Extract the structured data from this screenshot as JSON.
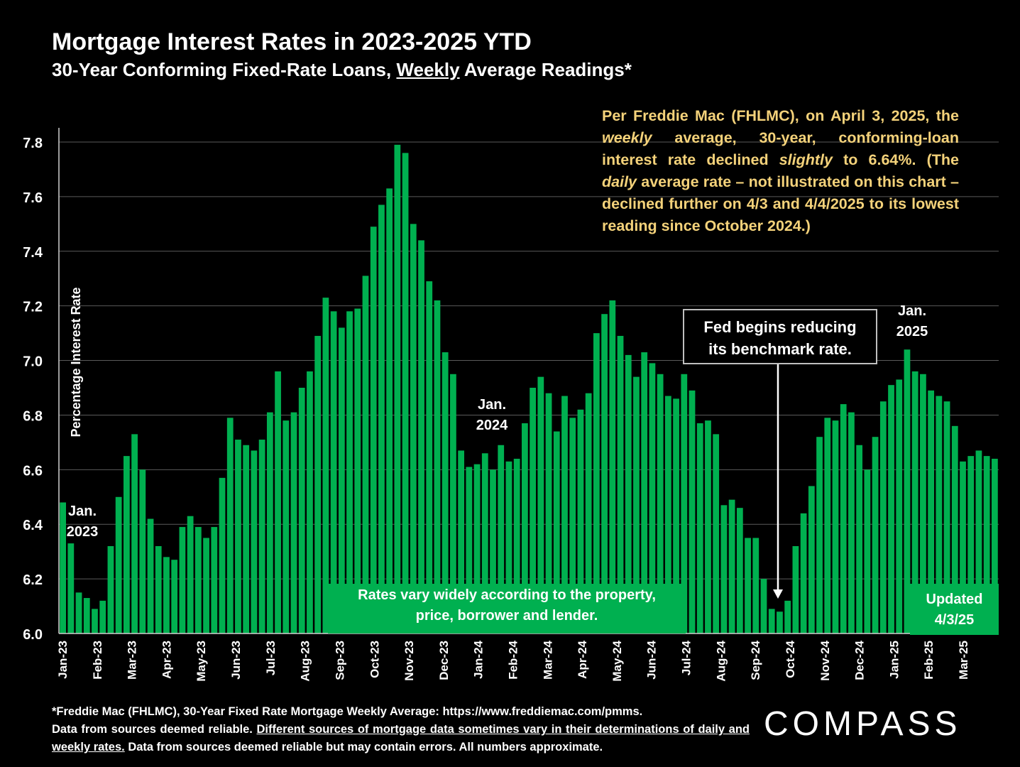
{
  "header": {
    "title": "Mortgage Interest Rates in 2023-2025 YTD",
    "subtitle_pre": "30-Year Conforming Fixed-Rate Loans, ",
    "subtitle_underlined": "Weekly",
    "subtitle_post": " Average Readings*"
  },
  "notice": {
    "p1": "Per Freddie Mac (FHLMC), on April 3, 2025, the ",
    "i1": "weekly",
    "p2": " average, 30-year, conforming-loan interest rate declined ",
    "i2": "slightly",
    "p3": " to 6.64%. (The ",
    "i3": "daily",
    "p4": " average rate – not illustrated on this chart – declined further on 4/3 and 4/4/2025 to its lowest reading since October 2024.)"
  },
  "annotations": {
    "fed_line1": "Fed begins reducing",
    "fed_line2": "its benchmark rate.",
    "rates_line1": "Rates vary widely according to the property,",
    "rates_line2": "price, borrower and lender.",
    "updated_line1": "Updated",
    "updated_line2": "4/3/25",
    "jan2023_a": "Jan.",
    "jan2023_b": "2023",
    "jan2024_a": "Jan.",
    "jan2024_b": "2024",
    "jan2025_a": "Jan.",
    "jan2025_b": "2025"
  },
  "footnote": {
    "line1": "*Freddie Mac (FHLMC), 30-Year Fixed Rate Mortgage Weekly Average: https://www.freddiemac.com/pmms.",
    "part2a": "Data from sources deemed reliable. ",
    "part2u": "Different sources of mortgage data sometimes vary in their determinations of daily and weekly rates.",
    "part2b": " Data from sources deemed reliable but may contain errors. All numbers approximate."
  },
  "logo": "COMPASS",
  "colors": {
    "bar": "#00b050",
    "notice_text": "#f4d27a",
    "background": "#000000"
  },
  "chart_data": {
    "type": "bar",
    "title": "Mortgage Interest Rates in 2023-2025 YTD",
    "ylabel": "Percentage Interest Rate",
    "ylim": [
      6.0,
      7.8
    ],
    "yticks": [
      "6.0",
      "6.2",
      "6.4",
      "6.6",
      "6.8",
      "7.0",
      "7.2",
      "7.4",
      "7.6",
      "7.8"
    ],
    "grid": true,
    "month_labels": [
      "Jan-23",
      "Feb-23",
      "Mar-23",
      "Apr-23",
      "May-23",
      "Jun-23",
      "Jul-23",
      "Aug-23",
      "Sep-23",
      "Oct-23",
      "Nov-23",
      "Dec-23",
      "Jan-24",
      "Feb-24",
      "Mar-24",
      "Apr-24",
      "May-24",
      "Jun-24",
      "Jul-24",
      "Aug-24",
      "Sep-24",
      "Oct-24",
      "Nov-24",
      "Dec-24",
      "Jan-25",
      "Feb-25",
      "Mar-25"
    ],
    "values": [
      6.48,
      6.33,
      6.15,
      6.13,
      6.09,
      6.12,
      6.32,
      6.5,
      6.65,
      6.73,
      6.6,
      6.42,
      6.32,
      6.28,
      6.27,
      6.39,
      6.43,
      6.39,
      6.35,
      6.39,
      6.57,
      6.79,
      6.71,
      6.69,
      6.67,
      6.71,
      6.81,
      6.96,
      6.78,
      6.81,
      6.9,
      6.96,
      7.09,
      7.23,
      7.18,
      7.12,
      7.18,
      7.19,
      7.31,
      7.49,
      7.57,
      7.63,
      7.79,
      7.76,
      7.5,
      7.44,
      7.29,
      7.22,
      7.03,
      6.95,
      6.67,
      6.61,
      6.62,
      6.66,
      6.6,
      6.69,
      6.63,
      6.64,
      6.77,
      6.9,
      6.94,
      6.88,
      6.74,
      6.87,
      6.79,
      6.82,
      6.88,
      7.1,
      7.17,
      7.22,
      7.09,
      7.02,
      6.94,
      7.03,
      6.99,
      6.95,
      6.87,
      6.86,
      6.95,
      6.89,
      6.77,
      6.78,
      6.73,
      6.47,
      6.49,
      6.46,
      6.35,
      6.35,
      6.2,
      6.09,
      6.08,
      6.12,
      6.32,
      6.44,
      6.54,
      6.72,
      6.79,
      6.78,
      6.84,
      6.81,
      6.69,
      6.6,
      6.72,
      6.85,
      6.91,
      6.93,
      7.04,
      6.96,
      6.95,
      6.89,
      6.87,
      6.85,
      6.76,
      6.63,
      6.65,
      6.67,
      6.65,
      6.64
    ]
  }
}
